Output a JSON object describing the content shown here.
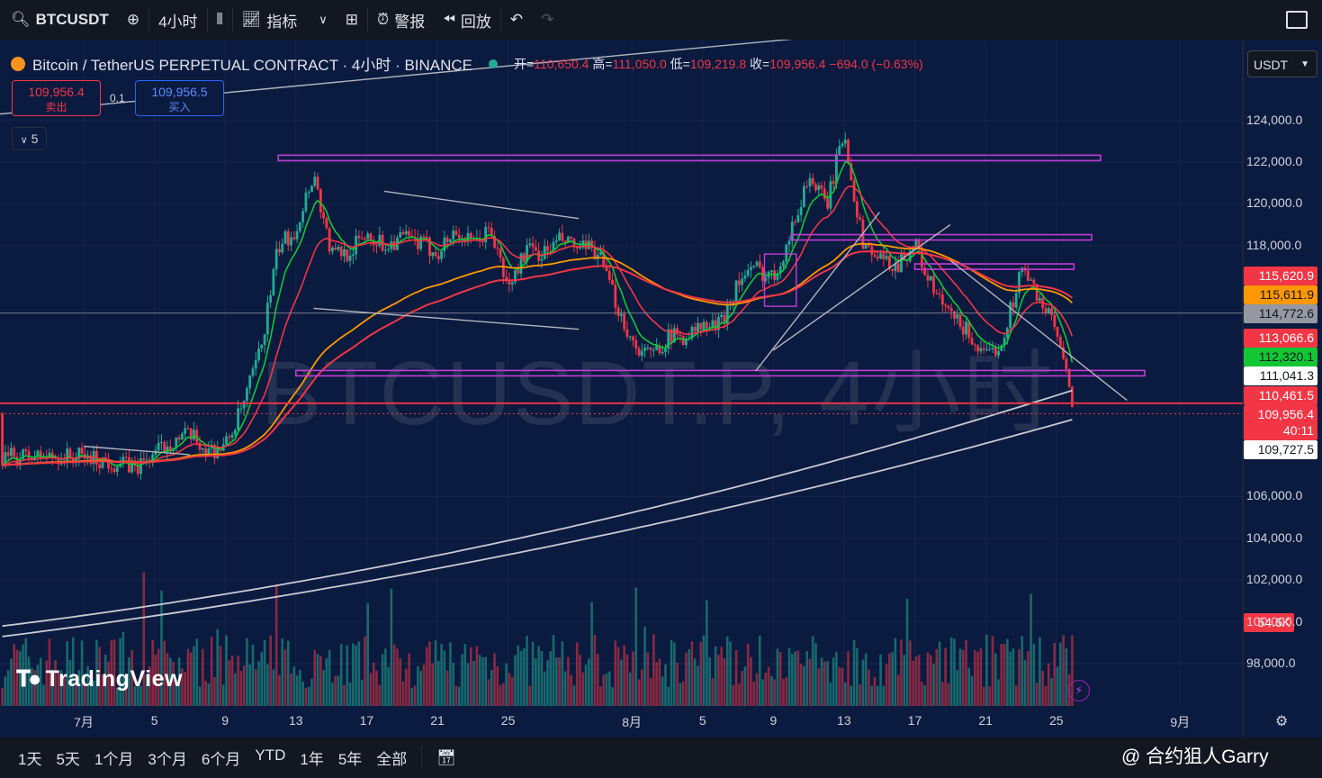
{
  "toolbar": {
    "symbol": "BTCUSDT",
    "interval": "4小时",
    "indicators": "指标",
    "alert": "警报",
    "replay": "回放"
  },
  "legend": {
    "title": "Bitcoin / TetherUS PERPETUAL CONTRACT · 4小时 · BINANCE",
    "open_label": "开=",
    "open": "110,650.4",
    "high_label": "高=",
    "high": "111,050.0",
    "low_label": "低=",
    "low": "109,219.8",
    "close_label": "收=",
    "close": "109,956.4",
    "change": "−694.0 (−0.63%)"
  },
  "trade": {
    "sell_price": "109,956.4",
    "sell_label": "卖出",
    "spread": "0.1",
    "buy_price": "109,956.5",
    "buy_label": "买入",
    "collapse": "5"
  },
  "currency": "USDT",
  "watermark": "BTCUSDT.P, 4小时",
  "brand": "TradingView",
  "credit": "@ 合约狙人Garry",
  "price_tags": [
    {
      "text": "115,620.9",
      "bg": "#f23645",
      "fg": "#ffffff"
    },
    {
      "text": "115,611.9",
      "bg": "#ff9800",
      "fg": "#131722"
    },
    {
      "text": "114,772.6",
      "bg": "#9598a1",
      "fg": "#131722"
    },
    {
      "text": "113,066.6",
      "bg": "#f23645",
      "fg": "#ffffff"
    },
    {
      "text": "112,320.1",
      "bg": "#12c733",
      "fg": "#131722"
    },
    {
      "text": "111,041.3",
      "bg": "#ffffff",
      "fg": "#131722"
    },
    {
      "text": "110,461.5",
      "bg": "#f23645",
      "fg": "#ffffff"
    },
    {
      "text": "109,956.4",
      "bg": "#f23645",
      "fg": "#ffffff"
    },
    {
      "text": "40:11",
      "bg": "#f23645",
      "fg": "#ffffff"
    },
    {
      "text": "109,727.5",
      "bg": "#ffffff",
      "fg": "#131722"
    },
    {
      "text": "54.6K",
      "bg": "#f23645",
      "fg": "#ffffff"
    }
  ],
  "bottom": {
    "ranges": [
      "1天",
      "5天",
      "1个月",
      "3个月",
      "6个月",
      "YTD",
      "1年",
      "5年",
      "全部"
    ]
  },
  "chart_data": {
    "type": "candlestick",
    "symbol": "BTCUSDT.P",
    "interval": "4小时",
    "ylim": [
      96500,
      126000
    ],
    "y_ticks": [
      98000,
      100000,
      102000,
      104000,
      106000,
      118000,
      120000,
      122000,
      124000
    ],
    "x_tick_labels": [
      "7月",
      "5",
      "9",
      "13",
      "17",
      "21",
      "25",
      "8月",
      "5",
      "9",
      "13",
      "17",
      "21",
      "25",
      "9月"
    ],
    "x_tick_days": [
      0,
      4,
      8,
      12,
      16,
      20,
      24,
      31,
      35,
      39,
      43,
      47,
      51,
      55,
      62
    ],
    "price_path": [
      [
        0,
        107900
      ],
      [
        3,
        107400
      ],
      [
        5,
        108700
      ],
      [
        6,
        108900
      ],
      [
        7,
        108200
      ],
      [
        8,
        108400
      ],
      [
        9,
        110300
      ],
      [
        10,
        113000
      ],
      [
        11,
        117900
      ],
      [
        12,
        118800
      ],
      [
        13,
        121500
      ],
      [
        14,
        117600
      ],
      [
        15,
        117700
      ],
      [
        16,
        118600
      ],
      [
        17,
        118000
      ],
      [
        18,
        118400
      ],
      [
        19,
        118100
      ],
      [
        20,
        117700
      ],
      [
        21,
        118700
      ],
      [
        22,
        118000
      ],
      [
        23,
        118800
      ],
      [
        24,
        115900
      ],
      [
        25,
        117800
      ],
      [
        26,
        117600
      ],
      [
        27,
        118300
      ],
      [
        28,
        117800
      ],
      [
        29,
        117800
      ],
      [
        30,
        115500
      ],
      [
        31,
        113400
      ],
      [
        32,
        112700
      ],
      [
        33,
        113600
      ],
      [
        34,
        113700
      ],
      [
        35,
        114100
      ],
      [
        36,
        114200
      ],
      [
        37,
        116300
      ],
      [
        38,
        116900
      ],
      [
        39,
        116500
      ],
      [
        40,
        118600
      ],
      [
        41,
        121400
      ],
      [
        42,
        119900
      ],
      [
        43,
        123500
      ],
      [
        44,
        118300
      ],
      [
        45,
        117300
      ],
      [
        46,
        117100
      ],
      [
        47,
        118100
      ],
      [
        48,
        115900
      ],
      [
        49,
        114600
      ],
      [
        50,
        113900
      ],
      [
        51,
        112500
      ],
      [
        52,
        113600
      ],
      [
        53,
        116900
      ],
      [
        54,
        115600
      ],
      [
        55,
        113900
      ],
      [
        56,
        109956
      ]
    ],
    "moving_averages": [
      {
        "color": "#12c733",
        "last": 112320.1
      },
      {
        "color": "#f23645",
        "last": 113066.6
      },
      {
        "color": "#ff9800",
        "last": 115611.9
      },
      {
        "color": "#f23645",
        "last": 115620.9
      },
      {
        "color": "#ffffff",
        "last": 111041.3
      },
      {
        "color": "#ffffff",
        "last": 109727.5
      }
    ],
    "horizontal_levels": [
      {
        "price": 122200,
        "color": "#9c27b0",
        "from_day": 11,
        "to_day": 57.5
      },
      {
        "price": 118400,
        "color": "#9c27b0",
        "from_day": 40,
        "to_day": 57
      },
      {
        "price": 117000,
        "color": "#9c27b0",
        "from_day": 47,
        "to_day": 56
      },
      {
        "price": 111900,
        "color": "#9c27b0",
        "from_day": 12,
        "to_day": 60
      },
      {
        "price": 110461.5,
        "color": "#f23645",
        "from_day": 0,
        "to_day": 62
      },
      {
        "price": 114772.6,
        "color": "#9598a1",
        "from_day": 0,
        "to_day": 62
      }
    ],
    "trend_lines": [
      [
        [
          17,
          120600
        ],
        [
          28,
          119300
        ]
      ],
      [
        [
          13,
          115000
        ],
        [
          28,
          114000
        ]
      ],
      [
        [
          0,
          108400
        ],
        [
          6,
          108000
        ]
      ],
      [
        [
          39,
          113000
        ],
        [
          49,
          119000
        ]
      ],
      [
        [
          38,
          112000
        ],
        [
          45,
          119600
        ]
      ],
      [
        [
          49,
          117300
        ],
        [
          59,
          110600
        ]
      ]
    ],
    "volume_last": "54.6K",
    "last_price": 109956.4
  }
}
